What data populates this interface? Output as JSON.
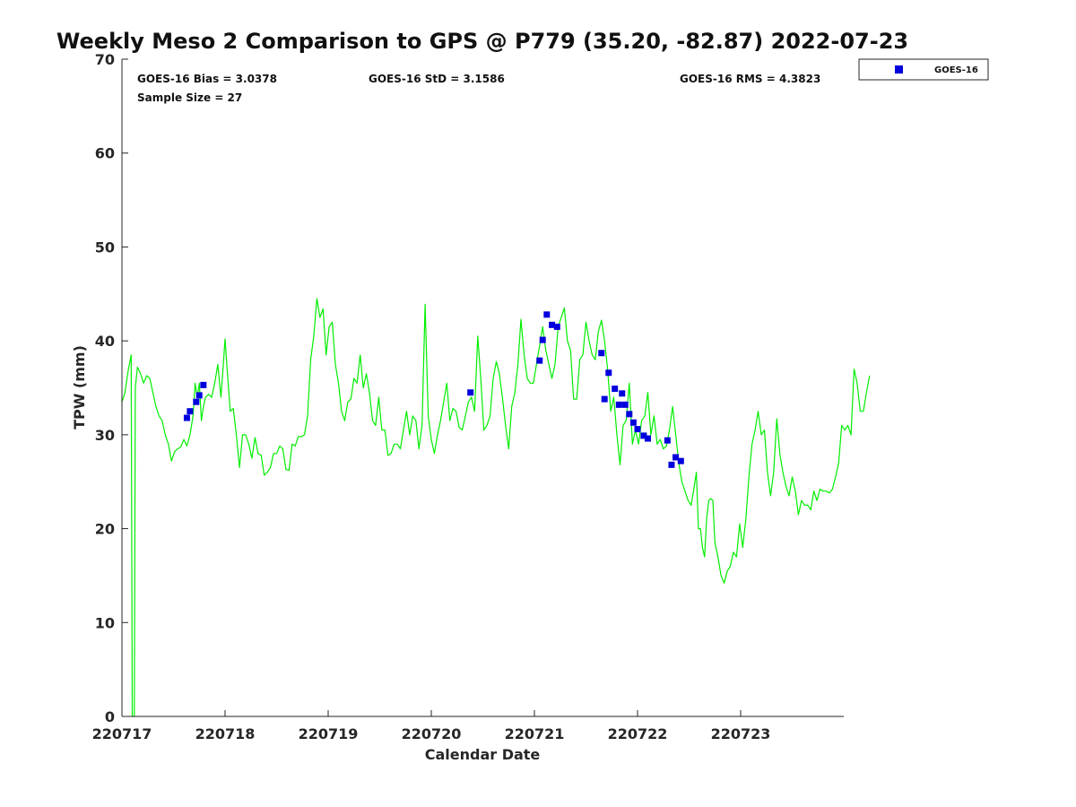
{
  "chart_data": {
    "type": "line",
    "title": "Weekly Meso 2 Comparison to GPS @ P779 (35.20, -82.87) 2022-07-23",
    "xlabel": "Calendar Date",
    "ylabel": "TPW (mm)",
    "xlim": [
      0,
      7
    ],
    "ylim": [
      0,
      70
    ],
    "yticks": [
      0,
      10,
      20,
      30,
      40,
      50,
      60,
      70
    ],
    "xtick_labels": [
      "220717",
      "220718",
      "220719",
      "220720",
      "220721",
      "220722",
      "220723"
    ],
    "grid": false,
    "legend_position": "top-right",
    "stats": {
      "bias": "GOES-16 Bias = 3.0378",
      "std": "GOES-16 StD = 3.1586",
      "rms": "GOES-16 RMS = 4.3823",
      "sample": "Sample Size = 27"
    },
    "series": [
      {
        "name": "GPS",
        "style": "line",
        "color": "#00ee00",
        "points": [
          [
            0.0,
            33.5
          ],
          [
            0.03,
            34.5
          ],
          [
            0.06,
            36.8
          ],
          [
            0.09,
            38.5
          ],
          [
            0.1,
            0.0
          ],
          [
            0.12,
            0.0
          ],
          [
            0.13,
            35.0
          ],
          [
            0.15,
            37.2
          ],
          [
            0.18,
            36.5
          ],
          [
            0.21,
            35.5
          ],
          [
            0.24,
            36.3
          ],
          [
            0.27,
            36.0
          ],
          [
            0.3,
            34.5
          ],
          [
            0.33,
            33.0
          ],
          [
            0.36,
            32.0
          ],
          [
            0.39,
            31.5
          ],
          [
            0.42,
            30.0
          ],
          [
            0.45,
            29.0
          ],
          [
            0.48,
            27.2
          ],
          [
            0.51,
            28.2
          ],
          [
            0.54,
            28.5
          ],
          [
            0.57,
            28.7
          ],
          [
            0.6,
            29.5
          ],
          [
            0.63,
            28.8
          ],
          [
            0.66,
            30.0
          ],
          [
            0.69,
            32.0
          ],
          [
            0.71,
            35.5
          ],
          [
            0.73,
            34.0
          ],
          [
            0.75,
            35.5
          ],
          [
            0.77,
            31.5
          ],
          [
            0.79,
            33.0
          ],
          [
            0.81,
            34.0
          ],
          [
            0.84,
            34.3
          ],
          [
            0.87,
            34.0
          ],
          [
            0.9,
            35.5
          ],
          [
            0.93,
            37.5
          ],
          [
            0.96,
            34.0
          ],
          [
            0.98,
            37.0
          ],
          [
            1.0,
            40.2
          ],
          [
            1.02,
            37.0
          ],
          [
            1.05,
            32.5
          ],
          [
            1.08,
            32.8
          ],
          [
            1.11,
            30.0
          ],
          [
            1.14,
            26.5
          ],
          [
            1.17,
            30.0
          ],
          [
            1.2,
            30.0
          ],
          [
            1.23,
            29.0
          ],
          [
            1.26,
            27.5
          ],
          [
            1.29,
            29.7
          ],
          [
            1.32,
            28.0
          ],
          [
            1.35,
            27.8
          ],
          [
            1.38,
            25.7
          ],
          [
            1.41,
            26.0
          ],
          [
            1.44,
            26.5
          ],
          [
            1.47,
            28.0
          ],
          [
            1.5,
            28.0
          ],
          [
            1.53,
            28.8
          ],
          [
            1.56,
            28.5
          ],
          [
            1.59,
            26.3
          ],
          [
            1.62,
            26.2
          ],
          [
            1.65,
            29.0
          ],
          [
            1.68,
            28.8
          ],
          [
            1.71,
            29.8
          ],
          [
            1.74,
            29.8
          ],
          [
            1.77,
            30.0
          ],
          [
            1.8,
            32.0
          ],
          [
            1.83,
            38.0
          ],
          [
            1.86,
            40.5
          ],
          [
            1.89,
            44.5
          ],
          [
            1.92,
            42.5
          ],
          [
            1.95,
            43.4
          ],
          [
            1.98,
            38.5
          ],
          [
            2.01,
            41.5
          ],
          [
            2.04,
            42.0
          ],
          [
            2.07,
            37.5
          ],
          [
            2.1,
            35.5
          ],
          [
            2.13,
            32.5
          ],
          [
            2.16,
            31.5
          ],
          [
            2.19,
            33.5
          ],
          [
            2.22,
            33.8
          ],
          [
            2.25,
            36.0
          ],
          [
            2.28,
            35.5
          ],
          [
            2.31,
            38.5
          ],
          [
            2.34,
            35.0
          ],
          [
            2.37,
            36.5
          ],
          [
            2.4,
            34.5
          ],
          [
            2.43,
            31.5
          ],
          [
            2.46,
            31.0
          ],
          [
            2.49,
            34.0
          ],
          [
            2.52,
            30.5
          ],
          [
            2.55,
            30.5
          ],
          [
            2.58,
            27.8
          ],
          [
            2.61,
            28.0
          ],
          [
            2.64,
            29.0
          ],
          [
            2.67,
            29.0
          ],
          [
            2.7,
            28.5
          ],
          [
            2.73,
            30.5
          ],
          [
            2.76,
            32.5
          ],
          [
            2.79,
            30.0
          ],
          [
            2.82,
            32.0
          ],
          [
            2.85,
            31.5
          ],
          [
            2.88,
            28.5
          ],
          [
            2.91,
            31.0
          ],
          [
            2.94,
            43.9
          ],
          [
            2.97,
            32.0
          ],
          [
            3.0,
            29.5
          ],
          [
            3.03,
            28.0
          ],
          [
            3.06,
            30.0
          ],
          [
            3.09,
            31.5
          ],
          [
            3.12,
            33.5
          ],
          [
            3.15,
            35.5
          ],
          [
            3.18,
            31.5
          ],
          [
            3.21,
            32.8
          ],
          [
            3.24,
            32.5
          ],
          [
            3.27,
            30.8
          ],
          [
            3.3,
            30.5
          ],
          [
            3.33,
            32.0
          ],
          [
            3.36,
            33.5
          ],
          [
            3.39,
            34.0
          ],
          [
            3.42,
            32.5
          ],
          [
            3.45,
            40.5
          ],
          [
            3.48,
            36.0
          ],
          [
            3.51,
            30.5
          ],
          [
            3.54,
            31.0
          ],
          [
            3.57,
            32.0
          ],
          [
            3.6,
            36.0
          ],
          [
            3.63,
            37.8
          ],
          [
            3.66,
            36.5
          ],
          [
            3.69,
            34.0
          ],
          [
            3.72,
            31.0
          ],
          [
            3.75,
            28.5
          ],
          [
            3.78,
            33.0
          ],
          [
            3.81,
            34.5
          ],
          [
            3.84,
            37.5
          ],
          [
            3.87,
            42.3
          ],
          [
            3.9,
            38.5
          ],
          [
            3.93,
            36.0
          ],
          [
            3.96,
            35.5
          ],
          [
            3.99,
            35.5
          ],
          [
            4.02,
            37.5
          ],
          [
            4.05,
            39.5
          ],
          [
            4.08,
            41.5
          ],
          [
            4.11,
            39.0
          ],
          [
            4.14,
            37.5
          ],
          [
            4.17,
            36.0
          ],
          [
            4.2,
            37.5
          ],
          [
            4.23,
            41.5
          ],
          [
            4.26,
            42.5
          ],
          [
            4.29,
            43.5
          ],
          [
            4.32,
            40.0
          ],
          [
            4.35,
            39.0
          ],
          [
            4.38,
            33.8
          ],
          [
            4.41,
            33.8
          ],
          [
            4.44,
            38.0
          ],
          [
            4.47,
            38.5
          ],
          [
            4.5,
            42.0
          ],
          [
            4.53,
            40.0
          ],
          [
            4.56,
            38.5
          ],
          [
            4.59,
            38.0
          ],
          [
            4.62,
            41.0
          ],
          [
            4.65,
            42.2
          ],
          [
            4.68,
            40.0
          ],
          [
            4.71,
            37.0
          ],
          [
            4.74,
            32.5
          ],
          [
            4.77,
            34.0
          ],
          [
            4.8,
            30.0
          ],
          [
            4.83,
            26.8
          ],
          [
            4.86,
            31.0
          ],
          [
            4.89,
            31.5
          ],
          [
            4.92,
            35.5
          ],
          [
            4.95,
            29.0
          ],
          [
            4.98,
            30.5
          ],
          [
            5.01,
            29.0
          ],
          [
            5.04,
            31.5
          ],
          [
            5.07,
            32.0
          ],
          [
            5.1,
            34.5
          ],
          [
            5.13,
            30.0
          ],
          [
            5.16,
            32.0
          ],
          [
            5.19,
            29.0
          ],
          [
            5.22,
            29.5
          ],
          [
            5.25,
            28.5
          ],
          [
            5.28,
            28.8
          ],
          [
            5.31,
            30.5
          ],
          [
            5.34,
            33.0
          ],
          [
            5.37,
            30.0
          ],
          [
            5.4,
            27.0
          ],
          [
            5.43,
            25.0
          ],
          [
            5.46,
            24.0
          ],
          [
            5.49,
            23.0
          ],
          [
            5.52,
            22.5
          ],
          [
            5.55,
            24.5
          ],
          [
            5.57,
            26.0
          ],
          [
            5.59,
            20.0
          ],
          [
            5.61,
            20.0
          ],
          [
            5.63,
            18.0
          ],
          [
            5.65,
            17.0
          ],
          [
            5.67,
            21.0
          ],
          [
            5.69,
            23.0
          ],
          [
            5.71,
            23.2
          ],
          [
            5.73,
            23.0
          ],
          [
            5.75,
            18.5
          ],
          [
            5.78,
            17.0
          ],
          [
            5.81,
            15.0
          ],
          [
            5.84,
            14.2
          ],
          [
            5.87,
            15.5
          ],
          [
            5.9,
            16.0
          ],
          [
            5.93,
            17.5
          ],
          [
            5.96,
            17.0
          ],
          [
            5.99,
            20.5
          ],
          [
            6.02,
            18.0
          ],
          [
            6.05,
            21.0
          ],
          [
            6.08,
            25.5
          ],
          [
            6.11,
            29.0
          ],
          [
            6.14,
            30.5
          ],
          [
            6.17,
            32.5
          ],
          [
            6.2,
            30.0
          ],
          [
            6.23,
            30.5
          ],
          [
            6.26,
            26.0
          ],
          [
            6.29,
            23.5
          ],
          [
            6.32,
            26.0
          ],
          [
            6.35,
            31.7
          ],
          [
            6.38,
            28.0
          ],
          [
            6.41,
            26.0
          ],
          [
            6.44,
            24.5
          ],
          [
            6.47,
            23.5
          ],
          [
            6.5,
            25.5
          ],
          [
            6.53,
            24.0
          ],
          [
            6.56,
            21.5
          ],
          [
            6.59,
            23.0
          ],
          [
            6.62,
            22.5
          ],
          [
            6.65,
            22.5
          ],
          [
            6.68,
            22.0
          ],
          [
            6.71,
            24.0
          ],
          [
            6.74,
            23.0
          ],
          [
            6.77,
            24.2
          ],
          [
            6.8,
            24.0
          ],
          [
            6.83,
            24.0
          ],
          [
            6.86,
            23.8
          ],
          [
            6.89,
            24.2
          ],
          [
            6.92,
            25.5
          ],
          [
            6.95,
            27.0
          ],
          [
            6.98,
            31.0
          ],
          [
            7.01,
            30.5
          ],
          [
            7.04,
            31.0
          ],
          [
            7.07,
            30.0
          ],
          [
            7.1,
            37.0
          ],
          [
            7.13,
            35.5
          ],
          [
            7.16,
            32.5
          ],
          [
            7.19,
            32.5
          ],
          [
            7.22,
            34.5
          ],
          [
            7.25,
            36.3
          ]
        ]
      },
      {
        "name": "GOES-16",
        "style": "marker",
        "color": "#0000dd",
        "points": [
          [
            0.63,
            31.8
          ],
          [
            0.66,
            32.5
          ],
          [
            0.72,
            33.5
          ],
          [
            0.75,
            34.2
          ],
          [
            0.79,
            35.3
          ],
          [
            3.38,
            34.5
          ],
          [
            4.05,
            37.9
          ],
          [
            4.08,
            40.1
          ],
          [
            4.12,
            42.8
          ],
          [
            4.17,
            41.7
          ],
          [
            4.22,
            41.5
          ],
          [
            4.65,
            38.7
          ],
          [
            4.68,
            33.8
          ],
          [
            4.72,
            36.6
          ],
          [
            4.78,
            34.9
          ],
          [
            4.82,
            33.2
          ],
          [
            4.85,
            34.4
          ],
          [
            4.88,
            33.2
          ],
          [
            4.92,
            32.2
          ],
          [
            4.96,
            31.3
          ],
          [
            5.0,
            30.6
          ],
          [
            5.06,
            29.9
          ],
          [
            5.1,
            29.6
          ],
          [
            5.29,
            29.4
          ],
          [
            5.33,
            26.8
          ],
          [
            5.37,
            27.6
          ],
          [
            5.42,
            27.2
          ]
        ]
      }
    ]
  }
}
